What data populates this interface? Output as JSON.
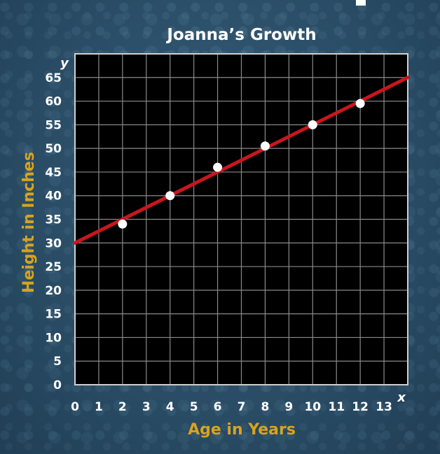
{
  "chart_data": {
    "type": "scatter",
    "title": "Joanna’s Growth",
    "xlabel": "Age in Years",
    "ylabel": "Height in Inches",
    "x_axis_letter": "x",
    "y_axis_letter": "y",
    "xlim": [
      0,
      14
    ],
    "ylim": [
      0,
      70
    ],
    "x_ticks": [
      0,
      1,
      2,
      3,
      4,
      5,
      6,
      7,
      8,
      9,
      10,
      11,
      12,
      13
    ],
    "y_ticks": [
      0,
      5,
      10,
      15,
      20,
      25,
      30,
      35,
      40,
      45,
      50,
      55,
      60,
      65
    ],
    "grid": true,
    "points": [
      {
        "x": 2,
        "y": 34
      },
      {
        "x": 4,
        "y": 40
      },
      {
        "x": 6,
        "y": 46
      },
      {
        "x": 8,
        "y": 50.5
      },
      {
        "x": 10,
        "y": 55
      },
      {
        "x": 12,
        "y": 59.5
      }
    ],
    "trend_line": {
      "intercept": 30,
      "slope": 2.5,
      "x_end": 14
    },
    "colors": {
      "plot_background": "#000000",
      "grid": "#8a8a8a",
      "trend_line": "#c8161d",
      "points": "#ffffff",
      "axis_title": "#d8a31e",
      "text": "#ffffff"
    }
  }
}
